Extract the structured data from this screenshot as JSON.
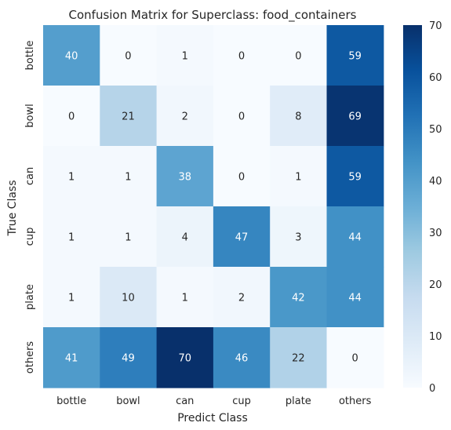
{
  "chart_data": {
    "type": "heatmap",
    "title": "Confusion Matrix for Superclass: food_containers",
    "xlabel": "Predict Class",
    "ylabel": "True Class",
    "x_categories": [
      "bottle",
      "bowl",
      "can",
      "cup",
      "plate",
      "others"
    ],
    "y_categories": [
      "bottle",
      "bowl",
      "can",
      "cup",
      "plate",
      "others"
    ],
    "values": [
      [
        40,
        0,
        1,
        0,
        0,
        59
      ],
      [
        0,
        21,
        2,
        0,
        8,
        69
      ],
      [
        1,
        1,
        38,
        0,
        1,
        59
      ],
      [
        1,
        1,
        4,
        47,
        3,
        44
      ],
      [
        1,
        10,
        1,
        2,
        42,
        44
      ],
      [
        41,
        49,
        70,
        46,
        22,
        0
      ]
    ],
    "colormap": "Blues",
    "color_range": [
      0,
      70
    ],
    "colorbar_ticks": [
      0,
      10,
      20,
      30,
      40,
      50,
      60,
      70
    ],
    "grid": false
  }
}
